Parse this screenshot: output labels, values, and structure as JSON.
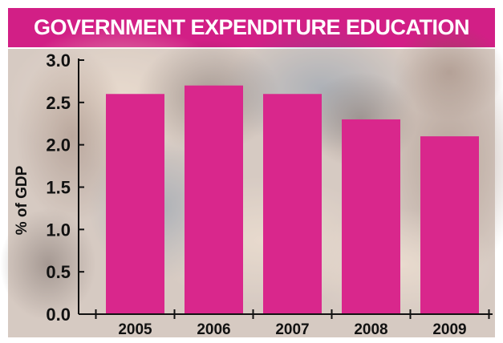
{
  "banner": {
    "title": "GOVERNMENT EXPENDITURE EDUCATION"
  },
  "colors": {
    "banner": "#d21f86",
    "bar": "#d9278c",
    "background_photo": "#c7b6ab",
    "text": "#111111"
  },
  "chart_data": {
    "type": "bar",
    "title": "GOVERNMENT EXPENDITURE EDUCATION",
    "xlabel": "",
    "ylabel": "% of GDP",
    "categories": [
      "2005",
      "2006",
      "2007",
      "2008",
      "2009"
    ],
    "values": [
      2.6,
      2.7,
      2.6,
      2.3,
      2.1
    ],
    "ylim": [
      0,
      3.0
    ],
    "yticks": [
      "0.0",
      "0.5",
      "1.0",
      "1.5",
      "2.0",
      "2.5",
      "3.0"
    ],
    "grid": false,
    "legend": "none",
    "background": "photograph of children"
  }
}
